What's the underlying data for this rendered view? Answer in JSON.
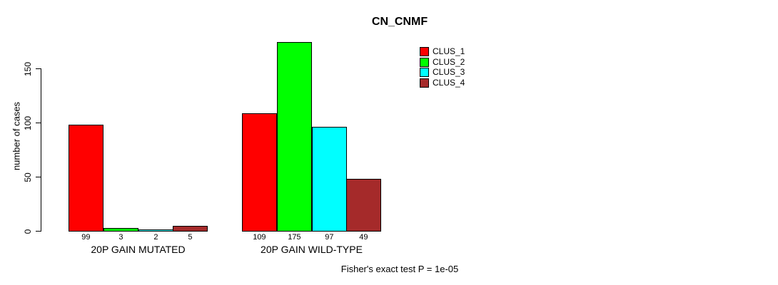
{
  "title": "CN_CNMF",
  "footer": "Fisher's exact test P = 1e-05",
  "colors": {
    "background": "#ffffff",
    "axis": "#000000",
    "text": "#000000",
    "bar_border": "#000000"
  },
  "chart_data": {
    "type": "bar",
    "title": "CN_CNMF",
    "xlabel": "",
    "ylabel": "number of cases",
    "categories": [
      "20P GAIN MUTATED",
      "20P GAIN WILD-TYPE"
    ],
    "series": [
      {
        "name": "CLUS_1",
        "color": "#ff0000",
        "values": [
          99,
          109
        ]
      },
      {
        "name": "CLUS_2",
        "color": "#00ff00",
        "values": [
          3,
          175
        ]
      },
      {
        "name": "CLUS_3",
        "color": "#00ffff",
        "values": [
          2,
          97
        ]
      },
      {
        "name": "CLUS_4",
        "color": "#a52a2a",
        "values": [
          5,
          49
        ]
      }
    ],
    "yticks": [
      0,
      50,
      100,
      150
    ],
    "ylim": [
      0,
      183
    ],
    "grid": false,
    "bar_value_labels": [
      [
        99,
        3,
        2,
        5
      ],
      [
        109,
        175,
        97,
        49
      ]
    ],
    "legend": [
      "CLUS_1",
      "CLUS_2",
      "CLUS_3",
      "CLUS_4"
    ],
    "legend_position": "top-right",
    "annotation": "Fisher's exact test P = 1e-05"
  }
}
